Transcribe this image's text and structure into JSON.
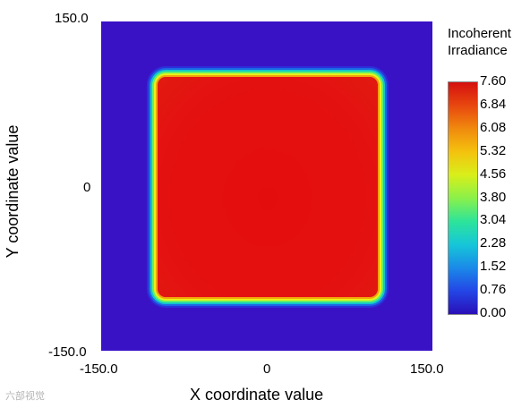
{
  "chart_data": {
    "type": "heatmap",
    "title": "",
    "xlabel": "X coordinate value",
    "ylabel": "Y coordinate value",
    "xlim": [
      -150.0,
      150.0
    ],
    "ylim": [
      -150.0,
      150.0
    ],
    "x_ticks": [
      "-150.0",
      "0",
      "150.0"
    ],
    "y_ticks": [
      "150.0",
      "0",
      "-150.0"
    ],
    "grid": false,
    "background_color": "#3a12c6",
    "region": {
      "shape": "rounded-square",
      "x_range": [
        -97,
        97
      ],
      "y_range": [
        -97,
        97
      ],
      "value": 7.3,
      "color": "#e41111"
    },
    "colorbar": {
      "title": "Incoherent Irradiance",
      "title_lines": [
        "Incoherent",
        "Irradiance"
      ],
      "min": 0.0,
      "max": 7.6,
      "tick_labels": [
        "7.60",
        "6.84",
        "6.08",
        "5.32",
        "4.56",
        "3.80",
        "3.04",
        "2.28",
        "1.52",
        "0.76",
        "0.00"
      ]
    }
  },
  "watermark": "六部视觉"
}
